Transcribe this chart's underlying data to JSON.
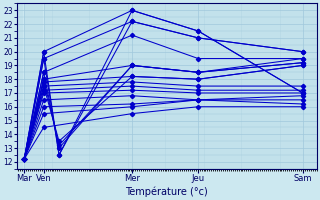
{
  "xlabel": "Température (°c)",
  "bg_color": "#cce8f0",
  "grid_color": "#a0c8dc",
  "line_color": "#0000cc",
  "ylim": [
    11.5,
    23.5
  ],
  "yticks": [
    12,
    13,
    14,
    15,
    16,
    17,
    18,
    19,
    20,
    21,
    22,
    23
  ],
  "day_labels": [
    "Mar",
    "Ven",
    "Mer",
    "Jeu",
    "Sam"
  ],
  "day_positions": [
    0.0,
    0.28,
    1.55,
    2.5,
    4.0
  ],
  "xlim": [
    -0.1,
    4.2
  ],
  "series": [
    [
      12.2,
      20.0,
      23.0,
      21.5,
      17.0
    ],
    [
      12.2,
      19.5,
      22.2,
      21.0,
      20.0
    ],
    [
      12.2,
      18.5,
      21.2,
      19.5,
      19.5
    ],
    [
      12.2,
      18.0,
      19.0,
      18.5,
      19.2
    ],
    [
      12.2,
      17.8,
      18.2,
      18.0,
      19.0
    ],
    [
      12.2,
      17.5,
      17.8,
      17.5,
      17.5
    ],
    [
      12.2,
      17.2,
      17.5,
      17.2,
      17.2
    ],
    [
      12.2,
      17.0,
      17.2,
      17.0,
      17.0
    ],
    [
      12.2,
      16.5,
      16.8,
      16.5,
      16.8
    ],
    [
      12.2,
      16.0,
      16.2,
      16.5,
      16.5
    ],
    [
      12.2,
      15.5,
      16.0,
      16.5,
      16.2
    ],
    [
      12.2,
      14.5,
      15.5,
      16.0,
      16.0
    ]
  ],
  "triangle_series": [
    [
      12.2,
      20.0,
      12.5,
      23.0,
      21.5,
      17.0
    ],
    [
      12.2,
      19.5,
      12.5,
      22.2,
      21.0,
      20.0
    ],
    [
      12.2,
      18.5,
      13.0,
      19.0,
      18.5,
      19.5
    ],
    [
      12.2,
      18.0,
      13.2,
      19.0,
      18.5,
      19.2
    ],
    [
      12.2,
      17.5,
      13.5,
      18.2,
      18.0,
      19.0
    ]
  ],
  "triangle_x": [
    0.0,
    0.28,
    0.5,
    1.55,
    2.5,
    4.0
  ]
}
